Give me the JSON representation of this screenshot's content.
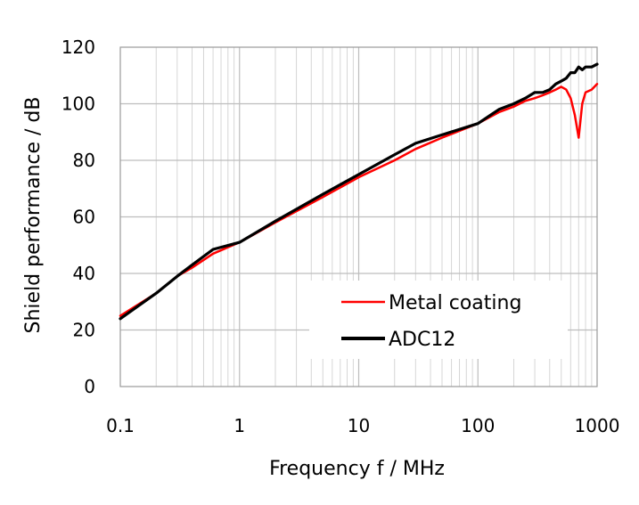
{
  "chart_data": {
    "type": "line",
    "xscale": "log",
    "xlabel": "Frequency f / MHz",
    "ylabel": "Shield performance / dB",
    "xlim": [
      0.1,
      1000
    ],
    "ylim": [
      0,
      120
    ],
    "x_ticks": [
      0.1,
      1,
      10,
      100,
      1000
    ],
    "x_tick_labels": [
      "0.1",
      "1",
      "10",
      "100",
      "1000"
    ],
    "y_ticks": [
      0,
      20,
      40,
      60,
      80,
      100,
      120
    ],
    "y_tick_labels": [
      "0",
      "20",
      "40",
      "60",
      "80",
      "100",
      "120"
    ],
    "grid": true,
    "legend_position": "bottom-right",
    "series": [
      {
        "name": "Metal coating",
        "color": "#ff0000",
        "x": [
          0.1,
          0.2,
          0.3,
          0.4,
          0.6,
          1,
          2,
          5,
          10,
          20,
          30,
          50,
          100,
          150,
          200,
          250,
          300,
          350,
          400,
          450,
          500,
          550,
          600,
          650,
          700,
          750,
          800,
          900,
          1000
        ],
        "y": [
          25,
          33,
          39,
          42,
          47,
          51,
          58,
          67,
          74,
          80,
          84,
          88,
          93,
          97,
          99,
          101,
          102,
          103,
          104,
          105,
          106,
          105,
          102,
          96,
          88,
          100,
          104,
          105,
          107
        ]
      },
      {
        "name": "ADC12",
        "color": "#000000",
        "x": [
          0.1,
          0.2,
          0.3,
          0.4,
          0.6,
          1,
          2,
          5,
          10,
          20,
          30,
          50,
          100,
          150,
          200,
          250,
          300,
          350,
          400,
          450,
          500,
          550,
          600,
          650,
          700,
          750,
          800,
          900,
          1000
        ],
        "y": [
          24,
          33,
          39,
          43,
          48.5,
          51,
          58.5,
          68,
          75,
          82,
          86,
          89,
          93,
          98,
          100,
          102,
          104,
          104,
          105,
          107,
          108,
          109,
          111,
          111,
          113,
          112,
          113,
          113,
          114
        ]
      }
    ]
  }
}
